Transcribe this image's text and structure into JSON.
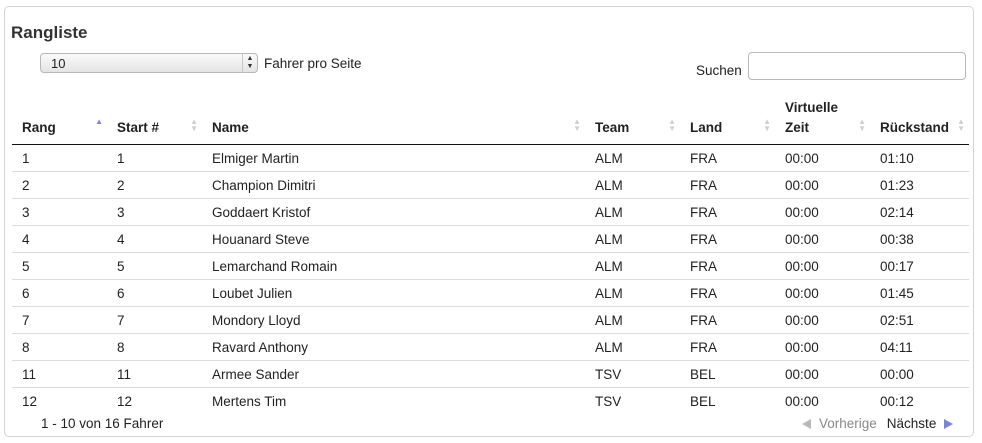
{
  "title": "Rangliste",
  "length": {
    "selected": "10",
    "label": "Fahrer pro Seite"
  },
  "search": {
    "label": "Suchen",
    "value": "",
    "placeholder": ""
  },
  "columns": [
    {
      "label": "Rang",
      "sorted": "asc"
    },
    {
      "label": "Start #",
      "sorted": "none"
    },
    {
      "label": "Name",
      "sorted": "none"
    },
    {
      "label": "Team",
      "sorted": "none"
    },
    {
      "label": "Land",
      "sorted": "none"
    },
    {
      "label_line1": "Virtuelle",
      "label_line2": "Zeit",
      "sorted": "none"
    },
    {
      "label": "Rückstand",
      "sorted": "none"
    }
  ],
  "rows": [
    [
      "1",
      "1",
      "Elmiger Martin",
      "ALM",
      "FRA",
      "00:00",
      "01:10"
    ],
    [
      "2",
      "2",
      "Champion Dimitri",
      "ALM",
      "FRA",
      "00:00",
      "01:23"
    ],
    [
      "3",
      "3",
      "Goddaert Kristof",
      "ALM",
      "FRA",
      "00:00",
      "02:14"
    ],
    [
      "4",
      "4",
      "Houanard Steve",
      "ALM",
      "FRA",
      "00:00",
      "00:38"
    ],
    [
      "5",
      "5",
      "Lemarchand Romain",
      "ALM",
      "FRA",
      "00:00",
      "00:17"
    ],
    [
      "6",
      "6",
      "Loubet Julien",
      "ALM",
      "FRA",
      "00:00",
      "01:45"
    ],
    [
      "7",
      "7",
      "Mondory Lloyd",
      "ALM",
      "FRA",
      "00:00",
      "02:51"
    ],
    [
      "8",
      "8",
      "Ravard Anthony",
      "ALM",
      "FRA",
      "00:00",
      "04:11"
    ],
    [
      "11",
      "11",
      "Armee Sander",
      "TSV",
      "BEL",
      "00:00",
      "00:00"
    ],
    [
      "12",
      "12",
      "Mertens Tim",
      "TSV",
      "BEL",
      "00:00",
      "00:12"
    ]
  ],
  "info": "1 - 10 von 16 Fahrer",
  "pagination": {
    "prev": "Vorherige",
    "next": "Nächste"
  },
  "colors": {
    "sort_active": "#7a86d8",
    "sort_inactive": "#cfcfcf",
    "prev_disabled": "#888888"
  }
}
